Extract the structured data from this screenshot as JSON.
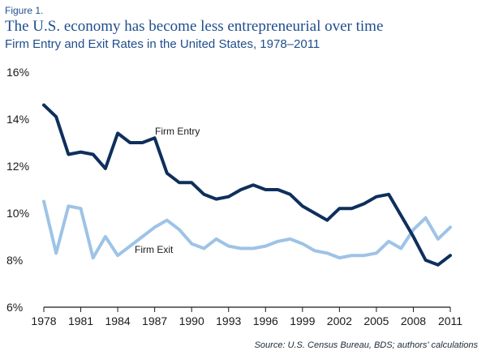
{
  "figure_label": "Figure 1.",
  "title": "The U.S. economy has become less entrepreneurial over time",
  "subtitle": "Firm Entry and Exit Rates in the United States, 1978–2011",
  "source": "Source: U.S. Census Bureau, BDS; authors' calculations",
  "colors": {
    "entry": "#0f2f5c",
    "exit": "#9ec3e6",
    "axis": "#1a1a1a"
  },
  "chart_data": {
    "type": "line",
    "title": "Firm Entry and Exit Rates in the United States, 1978–2011",
    "xlabel": "",
    "ylabel": "",
    "x": [
      1978,
      1979,
      1980,
      1981,
      1982,
      1983,
      1984,
      1985,
      1986,
      1987,
      1988,
      1989,
      1990,
      1991,
      1992,
      1993,
      1994,
      1995,
      1996,
      1997,
      1998,
      1999,
      2000,
      2001,
      2002,
      2003,
      2004,
      2005,
      2006,
      2007,
      2008,
      2009,
      2010,
      2011
    ],
    "xlim": [
      1978,
      2011
    ],
    "ylim": [
      6,
      16
    ],
    "x_ticks": [
      1978,
      1981,
      1984,
      1987,
      1990,
      1993,
      1996,
      1999,
      2002,
      2005,
      2008,
      2011
    ],
    "y_ticks": [
      6,
      8,
      10,
      12,
      14,
      16
    ],
    "y_tick_labels": [
      "6%",
      "8%",
      "10%",
      "12%",
      "14%",
      "16%"
    ],
    "grid": false,
    "series": [
      {
        "name": "Firm Entry",
        "values": [
          14.6,
          14.1,
          12.5,
          12.6,
          12.5,
          11.9,
          13.4,
          13.0,
          13.0,
          13.2,
          11.7,
          11.3,
          11.3,
          10.8,
          10.6,
          10.7,
          11.0,
          11.2,
          11.0,
          11.0,
          10.8,
          10.3,
          10.0,
          9.7,
          10.2,
          10.2,
          10.4,
          10.7,
          10.8,
          9.9,
          9.0,
          8.0,
          7.8,
          8.2
        ]
      },
      {
        "name": "Firm Exit",
        "values": [
          10.5,
          8.3,
          10.3,
          10.2,
          8.1,
          9.0,
          8.2,
          8.6,
          9.0,
          9.4,
          9.7,
          9.3,
          8.7,
          8.5,
          8.9,
          8.6,
          8.5,
          8.5,
          8.6,
          8.8,
          8.9,
          8.7,
          8.4,
          8.3,
          8.1,
          8.2,
          8.2,
          8.3,
          8.8,
          8.5,
          9.3,
          9.8,
          8.9,
          9.4
        ]
      }
    ]
  }
}
